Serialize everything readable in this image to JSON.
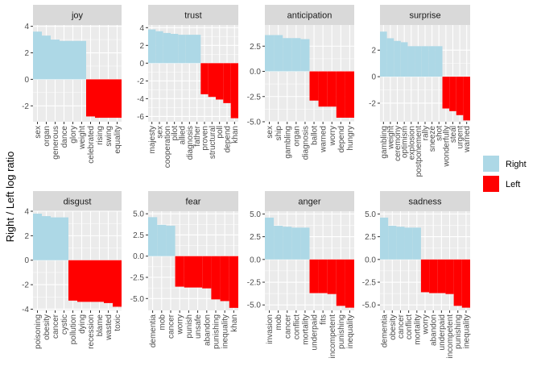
{
  "chart_data": {
    "type": "bar",
    "ylabel": "Right / Left log ratio",
    "xlabel": "",
    "legend": {
      "position": "right",
      "entries": [
        {
          "name": "Right",
          "color": "#ADD8E6"
        },
        {
          "name": "Left",
          "color": "#FF0000"
        }
      ]
    },
    "grid": true,
    "facets": [
      {
        "title": "joy",
        "ylim": [
          -3.2,
          4.1
        ],
        "yticks": [
          -2,
          0,
          2,
          4
        ],
        "categories": [
          "sex",
          "organ",
          "generous",
          "dance",
          "glory",
          "weight",
          "celebrated",
          "rising",
          "swing",
          "equality"
        ],
        "values": [
          3.6,
          3.3,
          3.0,
          2.9,
          2.9,
          2.9,
          -2.8,
          -2.9,
          -2.9,
          -2.9
        ],
        "groups": [
          "Right",
          "Right",
          "Right",
          "Right",
          "Right",
          "Right",
          "Left",
          "Left",
          "Left",
          "Left"
        ]
      },
      {
        "title": "trust",
        "ylim": [
          -6.6,
          4.3
        ],
        "yticks": [
          -6,
          -4,
          -2,
          0,
          2,
          4
        ],
        "categories": [
          "majesty",
          "sex",
          "cooperation",
          "pilot",
          "allied",
          "diagnosis",
          "father",
          "proven",
          "structural",
          "poll",
          "depend",
          "khan"
        ],
        "values": [
          3.8,
          3.6,
          3.4,
          3.3,
          3.2,
          3.2,
          3.2,
          -3.5,
          -3.8,
          -4.1,
          -4.5,
          -6.2
        ],
        "groups": [
          "Right",
          "Right",
          "Right",
          "Right",
          "Right",
          "Right",
          "Right",
          "Left",
          "Left",
          "Left",
          "Left",
          "Left"
        ]
      },
      {
        "title": "anticipation",
        "ylim": [
          -5.0,
          4.6
        ],
        "yticks": [
          -5.0,
          -2.5,
          0.0,
          2.5
        ],
        "categories": [
          "sex",
          "ship",
          "gambling",
          "organ",
          "diagnosis",
          "ballot",
          "warned",
          "worry",
          "depend",
          "hungry"
        ],
        "values": [
          3.6,
          3.6,
          3.3,
          3.3,
          3.2,
          -2.9,
          -3.5,
          -3.5,
          -4.6,
          -4.6
        ],
        "groups": [
          "Right",
          "Right",
          "Right",
          "Right",
          "Right",
          "Left",
          "Left",
          "Left",
          "Left",
          "Left"
        ]
      },
      {
        "title": "surprise",
        "ylim": [
          -3.4,
          3.9
        ],
        "yticks": [
          -2,
          0,
          2
        ],
        "categories": [
          "gambling",
          "weight",
          "ceremony",
          "optimism",
          "explosion",
          "postponement",
          "rally",
          "sneeze",
          "shot",
          "wonderfully",
          "steal",
          "urgent",
          "warned"
        ],
        "values": [
          3.4,
          2.9,
          2.7,
          2.6,
          2.3,
          2.3,
          2.3,
          2.3,
          2.3,
          -2.4,
          -2.6,
          -2.9,
          -3.3
        ],
        "groups": [
          "Right",
          "Right",
          "Right",
          "Right",
          "Right",
          "Right",
          "Right",
          "Right",
          "Right",
          "Left",
          "Left",
          "Left",
          "Left"
        ]
      },
      {
        "title": "disgust",
        "ylim": [
          -4.1,
          4.0
        ],
        "yticks": [
          -4,
          -2,
          0,
          2,
          4
        ],
        "categories": [
          "poisoning",
          "obesity",
          "cancer",
          "cystic",
          "pollution",
          "dying",
          "recession",
          "blame",
          "wasted",
          "toxic"
        ],
        "values": [
          3.8,
          3.6,
          3.5,
          3.5,
          -3.3,
          -3.4,
          -3.4,
          -3.4,
          -3.5,
          -3.8
        ],
        "groups": [
          "Right",
          "Right",
          "Right",
          "Right",
          "Left",
          "Left",
          "Left",
          "Left",
          "Left",
          "Left"
        ]
      },
      {
        "title": "fear",
        "ylim": [
          -6.4,
          5.3
        ],
        "yticks": [
          -5.0,
          -2.5,
          0.0,
          2.5,
          5.0
        ],
        "categories": [
          "dementia",
          "mob",
          "cancer",
          "worry",
          "punish",
          "unsafe",
          "abandon",
          "punishing",
          "inequality",
          "khan"
        ],
        "values": [
          4.6,
          3.7,
          3.6,
          -3.6,
          -3.7,
          -3.7,
          -3.8,
          -5.1,
          -5.3,
          -6.1
        ],
        "groups": [
          "Right",
          "Right",
          "Right",
          "Left",
          "Left",
          "Left",
          "Left",
          "Left",
          "Left",
          "Left"
        ]
      },
      {
        "title": "anger",
        "ylim": [
          -5.6,
          5.3
        ],
        "yticks": [
          -5.0,
          -2.5,
          0.0,
          2.5,
          5.0
        ],
        "categories": [
          "invasion",
          "mob",
          "cancer",
          "conflict",
          "mortality",
          "underpaid",
          "fits",
          "incompetent",
          "punishing",
          "inequality"
        ],
        "values": [
          4.6,
          3.7,
          3.6,
          3.5,
          3.5,
          -3.7,
          -3.7,
          -3.8,
          -5.1,
          -5.3
        ],
        "groups": [
          "Right",
          "Right",
          "Right",
          "Right",
          "Right",
          "Left",
          "Left",
          "Left",
          "Left",
          "Left"
        ]
      },
      {
        "title": "sadness",
        "ylim": [
          -5.6,
          5.3
        ],
        "yticks": [
          -5.0,
          -2.5,
          0.0,
          2.5,
          5.0
        ],
        "categories": [
          "dementia",
          "obesity",
          "cancer",
          "conflict",
          "mortality",
          "worry",
          "abandon",
          "underpaid",
          "incompetent",
          "punishing",
          "inequality"
        ],
        "values": [
          4.6,
          3.7,
          3.6,
          3.5,
          3.5,
          -3.6,
          -3.7,
          -3.7,
          -3.8,
          -5.1,
          -5.3
        ],
        "groups": [
          "Right",
          "Right",
          "Right",
          "Right",
          "Right",
          "Left",
          "Left",
          "Left",
          "Left",
          "Left",
          "Left"
        ]
      }
    ]
  }
}
